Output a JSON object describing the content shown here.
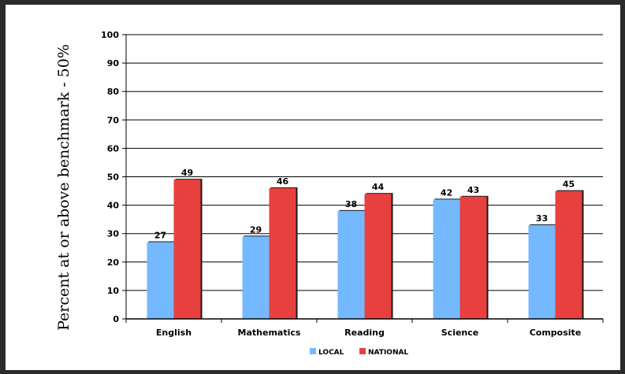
{
  "chart_data": {
    "type": "bar",
    "title": "",
    "xlabel": "",
    "ylabel": "Percent at or above benchmark - 50%",
    "categories": [
      "English",
      "Mathematics",
      "Reading",
      "Science",
      "Composite"
    ],
    "series": [
      {
        "name": "LOCAL",
        "values": [
          27,
          29,
          38,
          42,
          33
        ],
        "color": "#74b9ff"
      },
      {
        "name": "NATIONAL",
        "values": [
          49,
          46,
          44,
          43,
          45
        ],
        "color": "#e8403f"
      }
    ],
    "ylim": [
      0,
      100
    ],
    "yticks": [
      0,
      10,
      20,
      30,
      40,
      50,
      60,
      70,
      80,
      90,
      100
    ],
    "grid": true,
    "legend_position": "bottom-center",
    "data_labels": true
  }
}
